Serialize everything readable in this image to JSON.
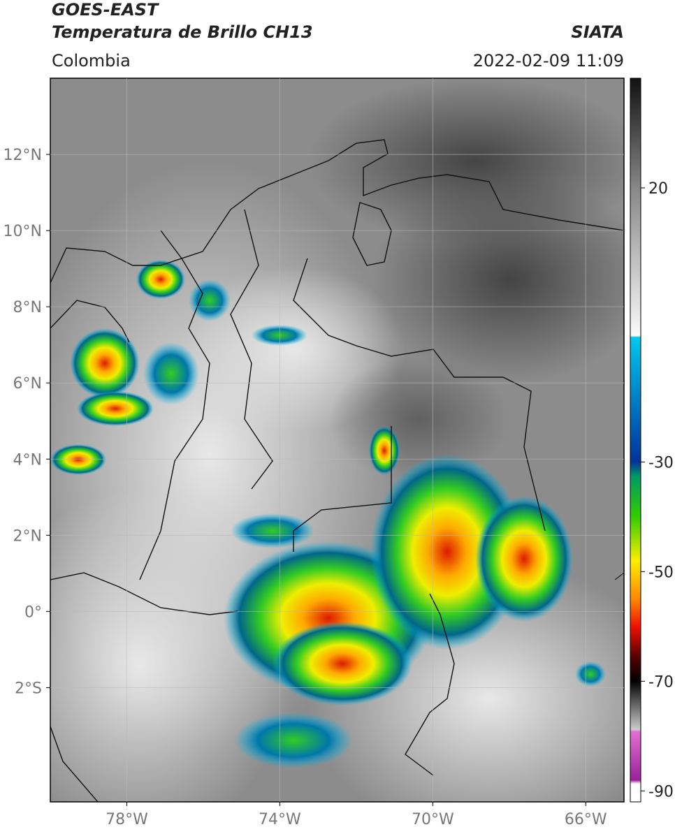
{
  "header": {
    "title": "GOES-EAST",
    "subtitle": "Temperatura de Brillo CH13",
    "source": "SIATA",
    "region": "Colombia",
    "datetime": "2022-02-09 11:09"
  },
  "map": {
    "type": "map",
    "xlim": [
      -80,
      -65
    ],
    "ylim": [
      -5,
      14
    ],
    "xticks": [
      {
        "value": -78,
        "label": "78°W"
      },
      {
        "value": -74,
        "label": "74°W"
      },
      {
        "value": -70,
        "label": "70°W"
      },
      {
        "value": -66,
        "label": "66°W"
      }
    ],
    "yticks": [
      {
        "value": 12,
        "label": "12°N"
      },
      {
        "value": 10,
        "label": "10°N"
      },
      {
        "value": 8,
        "label": "8°N"
      },
      {
        "value": 6,
        "label": "6°N"
      },
      {
        "value": 4,
        "label": "4°N"
      },
      {
        "value": 2,
        "label": "2°N"
      },
      {
        "value": 0,
        "label": "0°"
      },
      {
        "value": -2,
        "label": "2°S"
      }
    ],
    "grid": true
  },
  "colorbar": {
    "lim": [
      -92,
      40
    ],
    "ticks": [
      20,
      -30,
      -50,
      -70,
      -90
    ]
  }
}
